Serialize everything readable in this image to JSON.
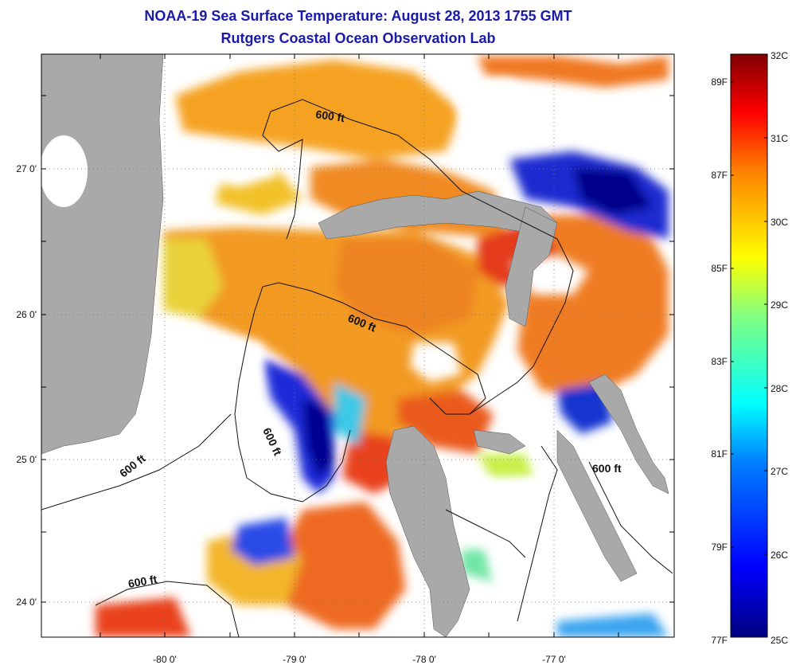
{
  "title_line1": "NOAA-19 Sea Surface Temperature:  August 28, 2013 1755 GMT",
  "title_line2": "Rutgers Coastal Ocean Observation Lab",
  "axes": {
    "x_ticks": [
      "-80 0'",
      "-79 0'",
      "-78 0'",
      "-77 0'"
    ],
    "y_ticks": [
      "27 0'",
      "26 0'",
      "25 0'",
      "24 0'"
    ]
  },
  "contour_labels": [
    "600 ft",
    "600 ft",
    "600 ft",
    "600 ft",
    "600 ft",
    "600 ft"
  ],
  "colorbar": {
    "celsius": [
      "32C",
      "31C",
      "30C",
      "29C",
      "28C",
      "27C",
      "26C",
      "25C"
    ],
    "fahrenheit": [
      "89F",
      "87F",
      "85F",
      "83F",
      "81F",
      "79F",
      "77F"
    ],
    "range_c": [
      25,
      32
    ]
  },
  "colors": {
    "title": "#1a1aa8",
    "land": "#a9a9a9",
    "cloud": "#ffffff"
  }
}
